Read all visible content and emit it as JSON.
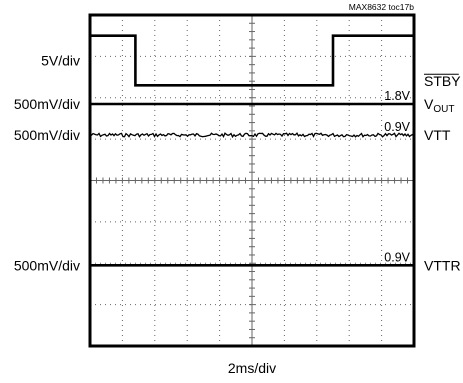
{
  "figure_id": "MAX8632 toc17b",
  "xlabel": "2ms/div",
  "chart_data": {
    "type": "line",
    "title": "",
    "xlabel": "2ms/div",
    "grid": true,
    "divisions": {
      "x": 10,
      "y": 8
    },
    "xlim": [
      0,
      10
    ],
    "ylim": [
      0,
      8
    ],
    "series": [
      {
        "name": "STBY",
        "scale": "5V/div",
        "level_markers": [],
        "points": [
          [
            0,
            7.5
          ],
          [
            1.4,
            7.5
          ],
          [
            1.4,
            6.3
          ],
          [
            7.5,
            6.3
          ],
          [
            7.5,
            7.5
          ],
          [
            10,
            7.5
          ]
        ]
      },
      {
        "name": "VOUT",
        "name_base": "V",
        "name_sub": "OUT",
        "scale": "500mV/div",
        "level_markers": [
          "1.8V"
        ],
        "points": [
          [
            0,
            5.85
          ],
          [
            10,
            5.85
          ]
        ]
      },
      {
        "name": "VTT",
        "scale": "500mV/div",
        "level_markers": [
          "0.9V"
        ],
        "noisy": true,
        "points": [
          [
            0,
            5.1
          ],
          [
            10,
            5.1
          ]
        ]
      },
      {
        "name": "VTTR",
        "scale": "500mV/div",
        "level_markers": [
          "0.9V"
        ],
        "points": [
          [
            0,
            1.95
          ],
          [
            10,
            1.95
          ]
        ]
      }
    ]
  }
}
